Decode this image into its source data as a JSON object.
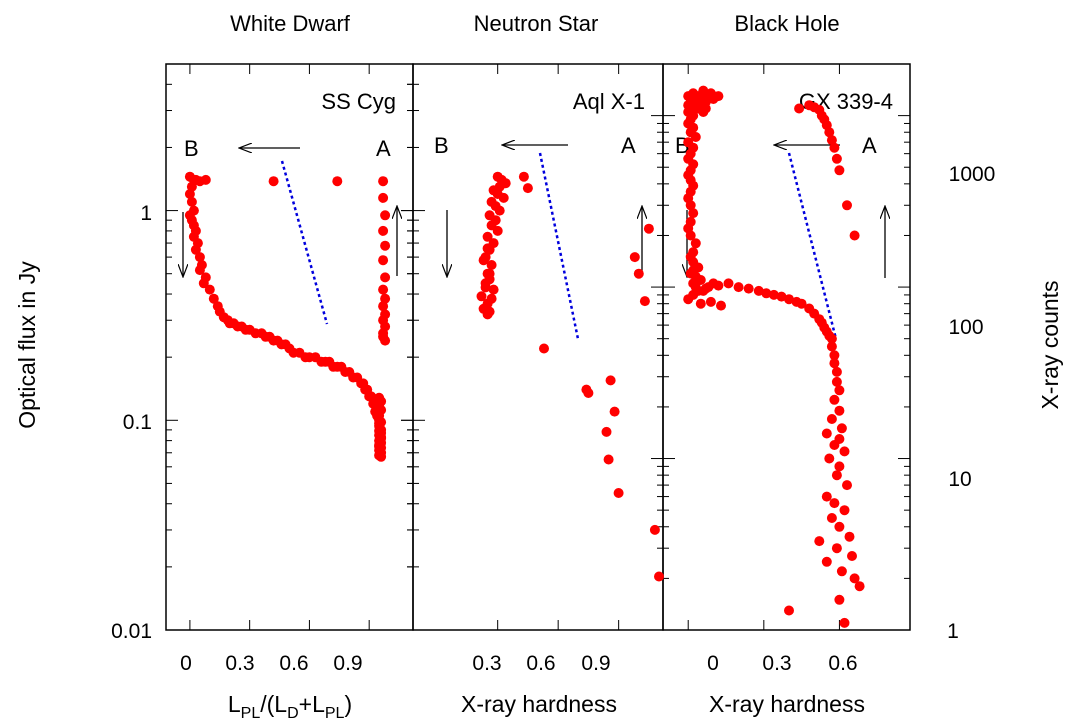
{
  "chart_data": [
    {
      "type": "scatter",
      "title": "White Dwarf",
      "annotation": "SS Cyg",
      "xlabel": {
        "main": "L",
        "sub1": "PL",
        "mid": "/(L",
        "sub2": "D",
        "plus": "+L",
        "sub3": "PL",
        "close": ")"
      },
      "ylabel": "Optical flux in Jy",
      "ylog": true,
      "ylim": [
        0.01,
        5
      ],
      "xlim": [
        -0.12,
        1.12
      ],
      "xticks": [
        0,
        0.3,
        0.6,
        0.9
      ],
      "xtick_labels": [
        "0",
        "0.3",
        "0.6",
        "0.9"
      ],
      "yticks": [
        0.01,
        0.1,
        1
      ],
      "ytick_labels": [
        "0.01",
        "0.1",
        "1"
      ],
      "state_labels": [
        "B",
        "A"
      ],
      "series": [
        {
          "color": "#ff0000",
          "x": [
            0.02,
            0.03,
            0.05,
            0.08,
            0.42,
            0.74,
            0.97,
            0.97,
            0.98,
            0.97,
            0.98,
            0.97,
            0.98,
            0.97,
            0.98,
            0.97,
            0.98,
            0.97,
            0.98,
            0.97,
            0.97,
            0.98,
            0.0,
            0.01,
            0.0,
            0.01,
            0.02,
            0.0,
            0.01,
            0.02,
            0.03,
            0.02,
            0.04,
            0.03,
            0.05,
            0.06,
            0.05,
            0.08,
            0.07,
            0.1,
            0.12,
            0.14,
            0.15,
            0.17,
            0.19,
            0.2,
            0.22,
            0.24,
            0.26,
            0.28,
            0.3,
            0.33,
            0.36,
            0.38,
            0.4,
            0.42,
            0.44,
            0.46,
            0.48,
            0.5,
            0.52,
            0.55,
            0.58,
            0.6,
            0.63,
            0.66,
            0.68,
            0.7,
            0.72,
            0.74,
            0.76,
            0.78,
            0.8,
            0.82,
            0.84,
            0.86,
            0.87,
            0.88,
            0.89,
            0.9,
            0.91,
            0.92,
            0.93,
            0.93,
            0.94,
            0.94,
            0.95,
            0.95,
            0.95,
            0.96,
            0.96,
            0.95,
            0.96,
            0.95,
            0.96,
            0.95,
            0.96,
            0.95,
            0.96,
            0.95,
            0.96,
            0.95,
            0.96,
            0.95,
            0.96,
            0.95,
            0.96,
            0.95,
            0.96,
            0.95
          ],
          "y": [
            1.4,
            1.4,
            1.38,
            1.4,
            1.38,
            1.38,
            1.38,
            1.15,
            0.95,
            0.8,
            0.68,
            0.58,
            0.48,
            0.42,
            0.38,
            0.35,
            0.32,
            0.3,
            0.28,
            0.26,
            0.25,
            0.24,
            1.45,
            1.3,
            1.2,
            1.1,
            1.0,
            0.95,
            0.9,
            0.85,
            0.8,
            0.75,
            0.7,
            0.65,
            0.6,
            0.55,
            0.52,
            0.48,
            0.45,
            0.42,
            0.38,
            0.35,
            0.33,
            0.31,
            0.3,
            0.29,
            0.29,
            0.28,
            0.28,
            0.27,
            0.27,
            0.26,
            0.26,
            0.25,
            0.25,
            0.24,
            0.24,
            0.23,
            0.23,
            0.22,
            0.21,
            0.21,
            0.2,
            0.2,
            0.2,
            0.19,
            0.19,
            0.19,
            0.18,
            0.18,
            0.18,
            0.17,
            0.17,
            0.16,
            0.16,
            0.15,
            0.15,
            0.14,
            0.14,
            0.13,
            0.13,
            0.12,
            0.12,
            0.11,
            0.11,
            0.105,
            0.1,
            0.097,
            0.094,
            0.09,
            0.087,
            0.085,
            0.083,
            0.08,
            0.078,
            0.076,
            0.074,
            0.072,
            0.07,
            0.068,
            0.067,
            0.075,
            0.082,
            0.089,
            0.098,
            0.105,
            0.112,
            0.118,
            0.123,
            0.128
          ]
        }
      ]
    },
    {
      "type": "scatter",
      "title": "Neutron Star",
      "annotation": "Aql X-1",
      "xlabel": "X-ray hardness",
      "ylog": true,
      "ylim": [
        0.01,
        5
      ],
      "xlim": [
        -0.12,
        1.12
      ],
      "xticks": [
        0.3,
        0.6,
        0.9
      ],
      "xtick_labels": [
        "0.3",
        "0.6",
        "0.9"
      ],
      "state_labels": [
        "B",
        "A"
      ],
      "series": [
        {
          "color": "#ff0000",
          "x": [
            0.3,
            0.32,
            0.34,
            0.31,
            0.28,
            0.3,
            0.33,
            0.27,
            0.29,
            0.31,
            0.26,
            0.29,
            0.27,
            0.3,
            0.25,
            0.28,
            0.26,
            0.24,
            0.27,
            0.25,
            0.26,
            0.24,
            0.28,
            0.22,
            0.25,
            0.23,
            0.26,
            0.25,
            0.27,
            0.24,
            0.26,
            0.23,
            0.25,
            0.43,
            0.45,
            0.53,
            0.74,
            0.75,
            0.86,
            0.88,
            0.84,
            0.85,
            0.9,
            1.08,
            1.1,
            1.05,
            1.0,
            0.98,
            1.03
          ],
          "y": [
            1.45,
            1.4,
            1.35,
            1.3,
            1.25,
            1.2,
            1.15,
            1.1,
            1.05,
            1.0,
            0.95,
            0.9,
            0.85,
            0.8,
            0.75,
            0.7,
            0.65,
            0.6,
            0.55,
            0.5,
            0.47,
            0.45,
            0.42,
            0.39,
            0.36,
            0.34,
            0.33,
            0.32,
            0.38,
            0.43,
            0.5,
            0.58,
            0.66,
            1.45,
            1.28,
            0.22,
            0.14,
            0.135,
            0.155,
            0.11,
            0.088,
            0.065,
            0.045,
            0.03,
            0.018,
            0.82,
            0.5,
            0.6,
            0.37
          ]
        }
      ]
    },
    {
      "type": "scatter",
      "title": "Black Hole",
      "annotation": "GX 339-4",
      "xlabel": "X-ray hardness",
      "ylabel2": "X-ray counts",
      "ylog": true,
      "ylim": [
        1,
        2000
      ],
      "xlim": [
        -0.1,
        0.88
      ],
      "xticks": [
        0,
        0.3,
        0.6
      ],
      "xtick_labels": [
        "0",
        "0.3",
        "0.6"
      ],
      "yticks": [
        1,
        10,
        100,
        1000
      ],
      "ytick_labels": [
        "1",
        "10",
        "100",
        "1000"
      ],
      "state_labels": [
        "B",
        "A"
      ],
      "series": [
        {
          "color": "#ff0000",
          "x": [
            0.0,
            0.01,
            0.02,
            0.03,
            0.04,
            0.05,
            0.06,
            0.07,
            0.08,
            0.09,
            0.1,
            0.12,
            0.0,
            0.01,
            0.03,
            0.05,
            0.07,
            0.0,
            0.02,
            0.04,
            0.06,
            0.01,
            0.0,
            0.02,
            0.01,
            0.03,
            0.0,
            0.02,
            0.01,
            0.0,
            0.02,
            0.01,
            0.0,
            0.01,
            0.02,
            0.01,
            0.0,
            0.01,
            0.02,
            0.01,
            0.0,
            0.01,
            0.03,
            0.02,
            0.01,
            0.02,
            0.04,
            0.02,
            0.01,
            0.03,
            0.05,
            0.02,
            0.03,
            0.06,
            0.08,
            0.1,
            0.12,
            0.07,
            0.04,
            0.02,
            0.0,
            0.05,
            0.09,
            0.13,
            0.16,
            0.2,
            0.24,
            0.28,
            0.31,
            0.34,
            0.37,
            0.4,
            0.43,
            0.45,
            0.48,
            0.5,
            0.52,
            0.53,
            0.54,
            0.55,
            0.56,
            0.57,
            0.57,
            0.58,
            0.58,
            0.59,
            0.59,
            0.6,
            0.58,
            0.6,
            0.57,
            0.61,
            0.55,
            0.6,
            0.58,
            0.62,
            0.56,
            0.6,
            0.59,
            0.63,
            0.55,
            0.58,
            0.62,
            0.57,
            0.6,
            0.64,
            0.52,
            0.59,
            0.65,
            0.55,
            0.61,
            0.66,
            0.68,
            0.4,
            0.6,
            0.62,
            0.44,
            0.48,
            0.5,
            0.52,
            0.53,
            0.54,
            0.55,
            0.56,
            0.57,
            0.58,
            0.59,
            0.6,
            0.63,
            0.66
          ],
          "y": [
            1300,
            1250,
            1350,
            1200,
            1300,
            1250,
            1400,
            1200,
            1300,
            1350,
            1250,
            1300,
            1150,
            1100,
            1200,
            1150,
            1100,
            1050,
            1000,
            1100,
            1050,
            950,
            900,
            850,
            800,
            750,
            700,
            650,
            600,
            560,
            520,
            480,
            450,
            420,
            390,
            360,
            330,
            300,
            270,
            240,
            220,
            200,
            180,
            160,
            150,
            140,
            130,
            125,
            120,
            115,
            110,
            105,
            100,
            95,
            100,
            105,
            102,
            98,
            95,
            90,
            85,
            80,
            82,
            78,
            105,
            100,
            98,
            95,
            92,
            90,
            88,
            85,
            82,
            80,
            75,
            70,
            65,
            62,
            58,
            55,
            52,
            50,
            45,
            40,
            36,
            32,
            28,
            25,
            22,
            19,
            17,
            15,
            14,
            13,
            12,
            11,
            10,
            9,
            8,
            7,
            6,
            5.5,
            5,
            4.5,
            4,
            3.5,
            3.3,
            3,
            2.7,
            2.5,
            2.2,
            2.0,
            1.8,
            1.3,
            1.5,
            1.1,
            1100,
            1150,
            1120,
            1080,
            1000,
            950,
            880,
            800,
            720,
            650,
            560,
            480,
            300,
            200
          ]
        }
      ]
    }
  ]
}
